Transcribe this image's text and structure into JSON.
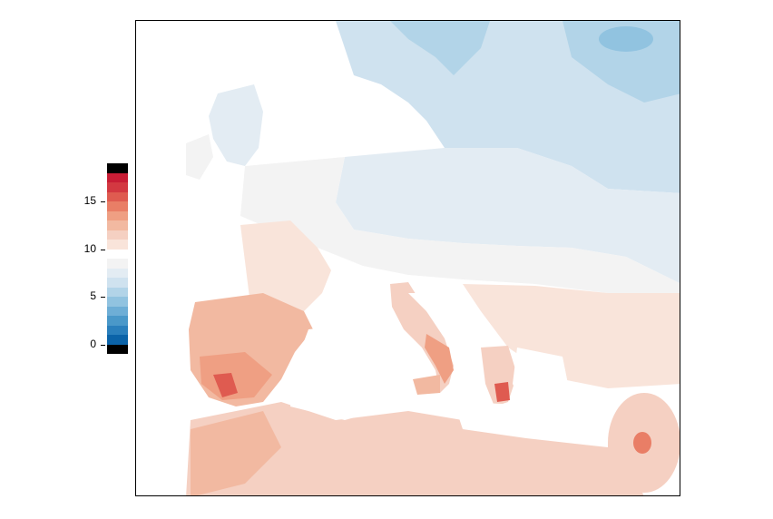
{
  "legend": {
    "ticks": [
      {
        "value": 0,
        "label": "0"
      },
      {
        "value": 5,
        "label": "5"
      },
      {
        "value": 10,
        "label": "10"
      },
      {
        "value": 15,
        "label": "15"
      }
    ],
    "bins": [
      {
        "from": -1,
        "to": 0,
        "color": "#000000"
      },
      {
        "from": 0,
        "to": 1,
        "color": "#0b63a8"
      },
      {
        "from": 1,
        "to": 2,
        "color": "#2a7fbc"
      },
      {
        "from": 2,
        "to": 3,
        "color": "#4a98c9"
      },
      {
        "from": 3,
        "to": 4,
        "color": "#6eaed6"
      },
      {
        "from": 4,
        "to": 5,
        "color": "#91c3e0"
      },
      {
        "from": 5,
        "to": 6,
        "color": "#b2d4e8"
      },
      {
        "from": 6,
        "to": 7,
        "color": "#cfe2ef"
      },
      {
        "from": 7,
        "to": 8,
        "color": "#e3ecf3"
      },
      {
        "from": 8,
        "to": 9,
        "color": "#f3f3f3"
      },
      {
        "from": 9,
        "to": 10,
        "color": "#ffffff"
      },
      {
        "from": 10,
        "to": 11,
        "color": "#f9e4da"
      },
      {
        "from": 11,
        "to": 12,
        "color": "#f5d0c2"
      },
      {
        "from": 12,
        "to": 13,
        "color": "#f2b9a1"
      },
      {
        "from": 13,
        "to": 14,
        "color": "#ef9f83"
      },
      {
        "from": 14,
        "to": 15,
        "color": "#e97e66"
      },
      {
        "from": 15,
        "to": 16,
        "color": "#df5b50"
      },
      {
        "from": 16,
        "to": 17,
        "color": "#d33841"
      },
      {
        "from": 17,
        "to": 18,
        "color": "#c81d35"
      },
      {
        "from": 18,
        "to": 19,
        "color": "#000000"
      }
    ]
  }
}
